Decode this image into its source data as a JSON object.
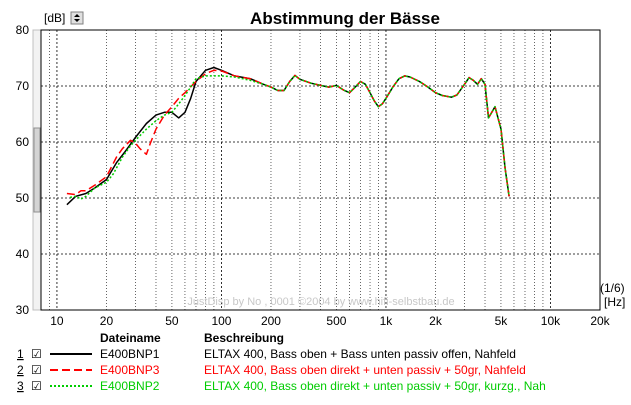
{
  "chart_data": {
    "type": "line",
    "title": "Abstimmung der Bässe",
    "ylabel": "[dB]",
    "xlabel": "[Hz]",
    "resolution_label": "(1/6)",
    "watermark": "JustDisp by No , 0001 ©2004 by www.hifi-selbstbau.de",
    "xscale": "log",
    "xlim": [
      8,
      20000
    ],
    "ylim": [
      30,
      80
    ],
    "y_ticks": [
      30,
      40,
      50,
      60,
      70,
      80
    ],
    "x_ticks": [
      {
        "value": 10,
        "label": "10"
      },
      {
        "value": 20,
        "label": "20"
      },
      {
        "value": 50,
        "label": "50"
      },
      {
        "value": 100,
        "label": "100"
      },
      {
        "value": 200,
        "label": "200"
      },
      {
        "value": 500,
        "label": "500"
      },
      {
        "value": 1000,
        "label": "1k"
      },
      {
        "value": 2000,
        "label": "2k"
      },
      {
        "value": 5000,
        "label": "5k"
      },
      {
        "value": 10000,
        "label": "10k"
      },
      {
        "value": 20000,
        "label": "20k"
      }
    ],
    "grid": true,
    "series": [
      {
        "name": "E400BNP1",
        "color": "#000000",
        "style": "solid",
        "points": [
          [
            11.5,
            48.8
          ],
          [
            13,
            50.3
          ],
          [
            15,
            50.8
          ],
          [
            17,
            51.8
          ],
          [
            20,
            53.3
          ],
          [
            23,
            56.3
          ],
          [
            26,
            58.3
          ],
          [
            30,
            60.8
          ],
          [
            35,
            63.3
          ],
          [
            40,
            64.8
          ],
          [
            45,
            65.3
          ],
          [
            50,
            65.3
          ],
          [
            55,
            64.3
          ],
          [
            60,
            65.3
          ],
          [
            65,
            67.8
          ],
          [
            70,
            70.8
          ],
          [
            80,
            72.8
          ],
          [
            90,
            73.3
          ],
          [
            100,
            72.8
          ],
          [
            120,
            71.8
          ],
          [
            150,
            71.3
          ],
          [
            180,
            70.3
          ],
          [
            200,
            69.8
          ],
          [
            220,
            69.2
          ],
          [
            240,
            69.2
          ],
          [
            260,
            70.8
          ],
          [
            280,
            71.9
          ],
          [
            300,
            71.2
          ],
          [
            350,
            70.5
          ],
          [
            400,
            70.1
          ],
          [
            450,
            69.8
          ],
          [
            500,
            70.1
          ],
          [
            550,
            69.3
          ],
          [
            600,
            68.8
          ],
          [
            650,
            69.8
          ],
          [
            700,
            70.8
          ],
          [
            750,
            70.3
          ],
          [
            800,
            68.8
          ],
          [
            850,
            67.3
          ],
          [
            900,
            66.3
          ],
          [
            950,
            66.8
          ],
          [
            1000,
            67.8
          ],
          [
            1100,
            69.8
          ],
          [
            1200,
            71.3
          ],
          [
            1300,
            71.8
          ],
          [
            1400,
            71.6
          ],
          [
            1600,
            70.8
          ],
          [
            1800,
            69.8
          ],
          [
            2000,
            68.8
          ],
          [
            2200,
            68.3
          ],
          [
            2500,
            68.0
          ],
          [
            2700,
            68.4
          ],
          [
            3000,
            70.3
          ],
          [
            3200,
            71.5
          ],
          [
            3400,
            71.0
          ],
          [
            3600,
            70.3
          ],
          [
            3800,
            71.3
          ],
          [
            4000,
            70.3
          ],
          [
            4200,
            64.3
          ],
          [
            4400,
            65.3
          ],
          [
            4600,
            66.3
          ],
          [
            4800,
            64.3
          ],
          [
            5000,
            62.3
          ],
          [
            5300,
            55.3
          ],
          [
            5600,
            50.3
          ]
        ]
      },
      {
        "name": "E400BNP3",
        "color": "#ff0000",
        "style": "dashed",
        "points": [
          [
            11.5,
            50.8
          ],
          [
            13,
            50.6
          ],
          [
            14,
            51.3
          ],
          [
            15,
            51.3
          ],
          [
            16,
            51.8
          ],
          [
            17,
            52.3
          ],
          [
            20,
            53.8
          ],
          [
            23,
            57.3
          ],
          [
            25,
            58.8
          ],
          [
            28,
            60.3
          ],
          [
            30,
            59.8
          ],
          [
            32,
            58.8
          ],
          [
            35,
            57.8
          ],
          [
            37,
            59.8
          ],
          [
            40,
            62.3
          ],
          [
            45,
            64.8
          ],
          [
            50,
            66.3
          ],
          [
            55,
            67.8
          ],
          [
            60,
            68.8
          ],
          [
            70,
            70.8
          ],
          [
            80,
            72.2
          ],
          [
            90,
            72.8
          ],
          [
            100,
            72.7
          ],
          [
            120,
            71.8
          ],
          [
            150,
            71.3
          ],
          [
            180,
            70.3
          ],
          [
            200,
            69.8
          ],
          [
            220,
            69.2
          ],
          [
            240,
            69.2
          ],
          [
            260,
            70.8
          ],
          [
            280,
            71.9
          ],
          [
            300,
            71.2
          ],
          [
            350,
            70.5
          ],
          [
            400,
            70.1
          ],
          [
            450,
            69.8
          ],
          [
            500,
            70.1
          ],
          [
            550,
            69.3
          ],
          [
            600,
            68.8
          ],
          [
            650,
            69.8
          ],
          [
            700,
            70.8
          ],
          [
            750,
            70.3
          ],
          [
            800,
            68.8
          ],
          [
            850,
            67.3
          ],
          [
            900,
            66.3
          ],
          [
            950,
            66.8
          ],
          [
            1000,
            67.8
          ],
          [
            1100,
            69.8
          ],
          [
            1200,
            71.3
          ],
          [
            1300,
            71.8
          ],
          [
            1400,
            71.6
          ],
          [
            1600,
            70.8
          ],
          [
            1800,
            69.8
          ],
          [
            2000,
            68.8
          ],
          [
            2200,
            68.3
          ],
          [
            2500,
            68.0
          ],
          [
            2700,
            68.4
          ],
          [
            3000,
            70.3
          ],
          [
            3200,
            71.5
          ],
          [
            3400,
            71.0
          ],
          [
            3600,
            70.3
          ],
          [
            3800,
            71.3
          ],
          [
            4000,
            70.3
          ],
          [
            4200,
            64.3
          ],
          [
            4400,
            65.3
          ],
          [
            4600,
            66.3
          ],
          [
            4800,
            64.3
          ],
          [
            5000,
            62.3
          ],
          [
            5300,
            55.3
          ],
          [
            5600,
            50.3
          ]
        ]
      },
      {
        "name": "E400BNP2",
        "color": "#00cc00",
        "style": "dotted",
        "points": [
          [
            12,
            50.1
          ],
          [
            13,
            50.3
          ],
          [
            14,
            49.8
          ],
          [
            15,
            50.3
          ],
          [
            17,
            51.8
          ],
          [
            20,
            52.8
          ],
          [
            22,
            54.3
          ],
          [
            25,
            57.3
          ],
          [
            28,
            59.3
          ],
          [
            30,
            60.3
          ],
          [
            35,
            62.3
          ],
          [
            40,
            63.8
          ],
          [
            45,
            64.8
          ],
          [
            50,
            65.3
          ],
          [
            55,
            66.8
          ],
          [
            60,
            68.3
          ],
          [
            65,
            69.8
          ],
          [
            70,
            71.3
          ],
          [
            80,
            71.8
          ],
          [
            100,
            71.8
          ],
          [
            120,
            71.6
          ],
          [
            150,
            71.0
          ],
          [
            180,
            70.3
          ],
          [
            200,
            69.8
          ],
          [
            220,
            69.2
          ],
          [
            240,
            69.2
          ],
          [
            260,
            70.8
          ],
          [
            280,
            71.9
          ],
          [
            300,
            71.2
          ],
          [
            350,
            70.5
          ],
          [
            400,
            70.1
          ],
          [
            450,
            69.8
          ],
          [
            500,
            70.1
          ],
          [
            550,
            69.3
          ],
          [
            600,
            68.8
          ],
          [
            650,
            69.8
          ],
          [
            700,
            70.8
          ],
          [
            750,
            70.3
          ],
          [
            800,
            68.8
          ],
          [
            850,
            67.3
          ],
          [
            900,
            66.3
          ],
          [
            950,
            66.8
          ],
          [
            1000,
            67.8
          ],
          [
            1100,
            69.8
          ],
          [
            1200,
            71.3
          ],
          [
            1300,
            71.8
          ],
          [
            1400,
            71.6
          ],
          [
            1600,
            70.8
          ],
          [
            1800,
            69.8
          ],
          [
            2000,
            68.8
          ],
          [
            2200,
            68.3
          ],
          [
            2500,
            68.0
          ],
          [
            2700,
            68.4
          ],
          [
            3000,
            70.3
          ],
          [
            3200,
            71.5
          ],
          [
            3400,
            71.0
          ],
          [
            3600,
            70.3
          ],
          [
            3800,
            71.3
          ],
          [
            4000,
            70.3
          ],
          [
            4200,
            64.3
          ],
          [
            4400,
            65.3
          ],
          [
            4600,
            66.3
          ],
          [
            4800,
            64.3
          ],
          [
            5000,
            62.3
          ],
          [
            5300,
            55.3
          ],
          [
            5600,
            50.3
          ]
        ]
      }
    ]
  },
  "legend": {
    "col_file": "Dateiname",
    "col_desc": "Beschreibung",
    "rows": [
      {
        "num": "1",
        "check": "☑",
        "file": "E400BNP1",
        "desc": "ELTAX 400, Bass oben + Bass unten passiv offen, Nahfeld",
        "color": "#000000",
        "style": "solid"
      },
      {
        "num": "2",
        "check": "☑",
        "file": "E400BNP3",
        "desc": "ELTAX 400, Bass oben direkt + unten passiv + 50gr, Nahfeld",
        "color": "#ff0000",
        "style": "dashed"
      },
      {
        "num": "3",
        "check": "☑",
        "file": "E400BNP2",
        "desc": "ELTAX 400, Bass oben direkt + unten passiv + 50gr, kurzg., Nah",
        "color": "#00cc00",
        "style": "dotted"
      }
    ]
  }
}
